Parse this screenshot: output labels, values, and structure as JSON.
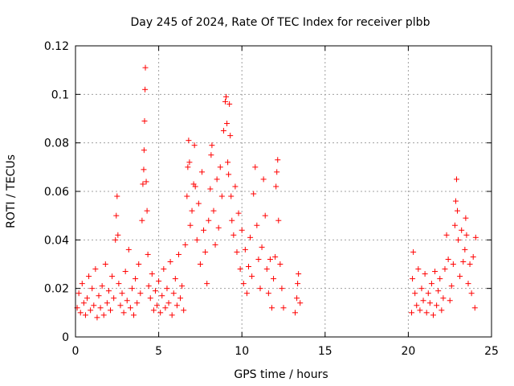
{
  "chart_data": {
    "type": "scatter",
    "title": "Day 245 of 2024, Rate Of TEC Index for receiver plbb",
    "xlabel": "GPS time / hours",
    "ylabel": "ROTI / TECUs",
    "xlim": [
      0,
      25
    ],
    "ylim": [
      0,
      0.12
    ],
    "xticks": [
      "0",
      "5",
      "10",
      "15",
      "20",
      "25"
    ],
    "yticks": [
      "0",
      "0.02",
      "0.04",
      "0.06",
      "0.08",
      "0.1",
      "0.12"
    ],
    "grid": true,
    "marker": "plus",
    "color": "#ff0000",
    "series": [
      {
        "points": [
          [
            0.1,
            0.012
          ],
          [
            0.2,
            0.018
          ],
          [
            0.3,
            0.01
          ],
          [
            0.4,
            0.022
          ],
          [
            0.5,
            0.014
          ],
          [
            0.6,
            0.009
          ],
          [
            0.7,
            0.016
          ],
          [
            0.8,
            0.025
          ],
          [
            0.9,
            0.011
          ],
          [
            1.0,
            0.02
          ],
          [
            1.1,
            0.013
          ],
          [
            1.2,
            0.028
          ],
          [
            1.3,
            0.008
          ],
          [
            1.4,
            0.017
          ],
          [
            1.5,
            0.012
          ],
          [
            1.6,
            0.021
          ],
          [
            1.7,
            0.009
          ],
          [
            1.8,
            0.03
          ],
          [
            1.9,
            0.014
          ],
          [
            2.0,
            0.019
          ],
          [
            2.1,
            0.011
          ],
          [
            2.2,
            0.025
          ],
          [
            2.3,
            0.016
          ],
          [
            2.4,
            0.04
          ],
          [
            2.45,
            0.05
          ],
          [
            2.5,
            0.058
          ],
          [
            2.55,
            0.042
          ],
          [
            2.6,
            0.022
          ],
          [
            2.7,
            0.013
          ],
          [
            2.8,
            0.018
          ],
          [
            2.9,
            0.01
          ],
          [
            3.0,
            0.027
          ],
          [
            3.1,
            0.015
          ],
          [
            3.2,
            0.036
          ],
          [
            3.3,
            0.012
          ],
          [
            3.4,
            0.02
          ],
          [
            3.5,
            0.009
          ],
          [
            3.6,
            0.024
          ],
          [
            3.7,
            0.014
          ],
          [
            3.8,
            0.03
          ],
          [
            3.9,
            0.018
          ],
          [
            4.0,
            0.048
          ],
          [
            4.05,
            0.063
          ],
          [
            4.1,
            0.069
          ],
          [
            4.12,
            0.077
          ],
          [
            4.15,
            0.089
          ],
          [
            4.18,
            0.102
          ],
          [
            4.2,
            0.111
          ],
          [
            4.25,
            0.064
          ],
          [
            4.3,
            0.052
          ],
          [
            4.35,
            0.034
          ],
          [
            4.4,
            0.021
          ],
          [
            4.5,
            0.016
          ],
          [
            4.6,
            0.026
          ],
          [
            4.7,
            0.011
          ],
          [
            4.8,
            0.019
          ],
          [
            4.9,
            0.013
          ],
          [
            5.0,
            0.023
          ],
          [
            5.1,
            0.01
          ],
          [
            5.2,
            0.017
          ],
          [
            5.3,
            0.028
          ],
          [
            5.4,
            0.012
          ],
          [
            5.5,
            0.02
          ],
          [
            5.6,
            0.014
          ],
          [
            5.7,
            0.031
          ],
          [
            5.8,
            0.009
          ],
          [
            5.9,
            0.018
          ],
          [
            6.0,
            0.024
          ],
          [
            6.1,
            0.013
          ],
          [
            6.2,
            0.034
          ],
          [
            6.3,
            0.016
          ],
          [
            6.4,
            0.021
          ],
          [
            6.5,
            0.011
          ],
          [
            6.6,
            0.038
          ],
          [
            6.7,
            0.058
          ],
          [
            6.75,
            0.07
          ],
          [
            6.8,
            0.081
          ],
          [
            6.85,
            0.072
          ],
          [
            6.9,
            0.046
          ],
          [
            7.0,
            0.052
          ],
          [
            7.1,
            0.063
          ],
          [
            7.15,
            0.079
          ],
          [
            7.2,
            0.062
          ],
          [
            7.3,
            0.04
          ],
          [
            7.4,
            0.055
          ],
          [
            7.5,
            0.03
          ],
          [
            7.6,
            0.068
          ],
          [
            7.7,
            0.044
          ],
          [
            7.8,
            0.035
          ],
          [
            7.9,
            0.022
          ],
          [
            8.0,
            0.048
          ],
          [
            8.1,
            0.061
          ],
          [
            8.15,
            0.075
          ],
          [
            8.2,
            0.079
          ],
          [
            8.3,
            0.052
          ],
          [
            8.4,
            0.038
          ],
          [
            8.5,
            0.065
          ],
          [
            8.6,
            0.045
          ],
          [
            8.7,
            0.07
          ],
          [
            8.8,
            0.058
          ],
          [
            8.9,
            0.085
          ],
          [
            9.0,
            0.097
          ],
          [
            9.05,
            0.099
          ],
          [
            9.1,
            0.088
          ],
          [
            9.15,
            0.072
          ],
          [
            9.2,
            0.067
          ],
          [
            9.25,
            0.096
          ],
          [
            9.3,
            0.083
          ],
          [
            9.35,
            0.058
          ],
          [
            9.4,
            0.048
          ],
          [
            9.5,
            0.042
          ],
          [
            9.6,
            0.062
          ],
          [
            9.7,
            0.035
          ],
          [
            9.8,
            0.051
          ],
          [
            9.9,
            0.028
          ],
          [
            10.0,
            0.044
          ],
          [
            10.1,
            0.022
          ],
          [
            10.2,
            0.036
          ],
          [
            10.3,
            0.018
          ],
          [
            10.4,
            0.029
          ],
          [
            10.5,
            0.041
          ],
          [
            10.6,
            0.025
          ],
          [
            10.7,
            0.059
          ],
          [
            10.8,
            0.07
          ],
          [
            10.9,
            0.046
          ],
          [
            11.0,
            0.032
          ],
          [
            11.1,
            0.02
          ],
          [
            11.2,
            0.037
          ],
          [
            11.3,
            0.065
          ],
          [
            11.4,
            0.05
          ],
          [
            11.5,
            0.028
          ],
          [
            11.6,
            0.018
          ],
          [
            11.7,
            0.032
          ],
          [
            11.8,
            0.012
          ],
          [
            11.9,
            0.024
          ],
          [
            12.0,
            0.033
          ],
          [
            12.05,
            0.062
          ],
          [
            12.1,
            0.068
          ],
          [
            12.15,
            0.073
          ],
          [
            12.2,
            0.048
          ],
          [
            12.3,
            0.03
          ],
          [
            12.4,
            0.02
          ],
          [
            12.5,
            0.012
          ],
          [
            13.2,
            0.01
          ],
          [
            13.3,
            0.016
          ],
          [
            13.35,
            0.022
          ],
          [
            13.4,
            0.026
          ],
          [
            13.5,
            0.014
          ],
          [
            20.2,
            0.01
          ],
          [
            20.25,
            0.024
          ],
          [
            20.3,
            0.035
          ],
          [
            20.4,
            0.018
          ],
          [
            20.5,
            0.013
          ],
          [
            20.6,
            0.028
          ],
          [
            20.7,
            0.011
          ],
          [
            20.8,
            0.02
          ],
          [
            20.9,
            0.015
          ],
          [
            21.0,
            0.026
          ],
          [
            21.1,
            0.01
          ],
          [
            21.2,
            0.018
          ],
          [
            21.3,
            0.014
          ],
          [
            21.4,
            0.022
          ],
          [
            21.5,
            0.009
          ],
          [
            21.6,
            0.027
          ],
          [
            21.7,
            0.013
          ],
          [
            21.8,
            0.019
          ],
          [
            21.9,
            0.024
          ],
          [
            22.0,
            0.011
          ],
          [
            22.1,
            0.016
          ],
          [
            22.2,
            0.028
          ],
          [
            22.3,
            0.042
          ],
          [
            22.4,
            0.032
          ],
          [
            22.5,
            0.015
          ],
          [
            22.6,
            0.021
          ],
          [
            22.7,
            0.03
          ],
          [
            22.8,
            0.046
          ],
          [
            22.85,
            0.056
          ],
          [
            22.9,
            0.065
          ],
          [
            22.95,
            0.052
          ],
          [
            23.0,
            0.04
          ],
          [
            23.1,
            0.025
          ],
          [
            23.2,
            0.044
          ],
          [
            23.3,
            0.031
          ],
          [
            23.4,
            0.036
          ],
          [
            23.45,
            0.049
          ],
          [
            23.5,
            0.042
          ],
          [
            23.6,
            0.022
          ],
          [
            23.7,
            0.03
          ],
          [
            23.8,
            0.018
          ],
          [
            23.9,
            0.033
          ],
          [
            24.0,
            0.012
          ],
          [
            24.05,
            0.041
          ]
        ]
      }
    ]
  }
}
